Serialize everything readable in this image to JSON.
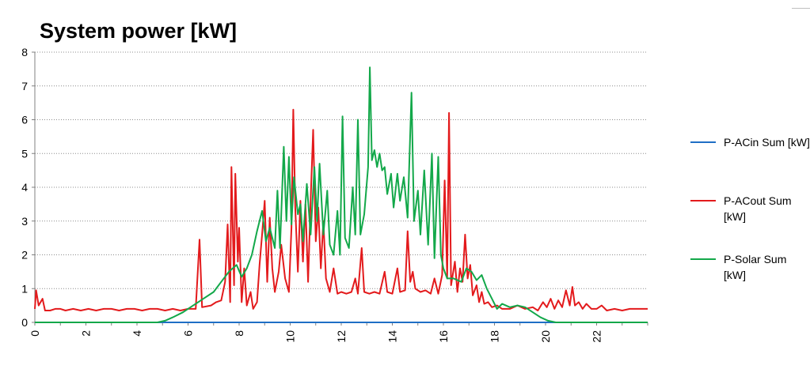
{
  "chart_data": {
    "type": "line",
    "title": "System power [kW]",
    "xlabel": "",
    "ylabel": "",
    "xlim": [
      0,
      24
    ],
    "ylim": [
      0,
      8
    ],
    "y_ticks": [
      "0",
      "1",
      "2",
      "3",
      "4",
      "5",
      "6",
      "7",
      "8"
    ],
    "x_ticks": [
      "0",
      "2",
      "4",
      "6",
      "8",
      "10",
      "12",
      "14",
      "16",
      "18",
      "20",
      "22"
    ],
    "grid": "horizontal dotted",
    "legend_position": "right",
    "series": [
      {
        "name": "P-ACin Sum [kW]",
        "color": "#1f6fc5",
        "points": [
          [
            0,
            0
          ],
          [
            24,
            0
          ]
        ]
      },
      {
        "name": "P-ACout Sum [kW]",
        "color": "#e31a1c",
        "points": [
          [
            0,
            0.4
          ],
          [
            0.05,
            0.95
          ],
          [
            0.15,
            0.5
          ],
          [
            0.3,
            0.7
          ],
          [
            0.4,
            0.35
          ],
          [
            0.6,
            0.35
          ],
          [
            0.8,
            0.4
          ],
          [
            1.0,
            0.4
          ],
          [
            1.2,
            0.35
          ],
          [
            1.5,
            0.4
          ],
          [
            1.8,
            0.35
          ],
          [
            2.1,
            0.4
          ],
          [
            2.4,
            0.35
          ],
          [
            2.7,
            0.4
          ],
          [
            3.0,
            0.4
          ],
          [
            3.3,
            0.35
          ],
          [
            3.6,
            0.4
          ],
          [
            3.9,
            0.4
          ],
          [
            4.2,
            0.35
          ],
          [
            4.5,
            0.4
          ],
          [
            4.8,
            0.4
          ],
          [
            5.1,
            0.35
          ],
          [
            5.4,
            0.4
          ],
          [
            5.7,
            0.35
          ],
          [
            6.0,
            0.4
          ],
          [
            6.3,
            0.4
          ],
          [
            6.45,
            2.45
          ],
          [
            6.55,
            0.45
          ],
          [
            6.9,
            0.5
          ],
          [
            7.1,
            0.6
          ],
          [
            7.3,
            0.65
          ],
          [
            7.45,
            1.2
          ],
          [
            7.55,
            2.9
          ],
          [
            7.65,
            0.6
          ],
          [
            7.7,
            4.6
          ],
          [
            7.8,
            1.1
          ],
          [
            7.85,
            4.4
          ],
          [
            7.95,
            1.8
          ],
          [
            8.0,
            2.8
          ],
          [
            8.1,
            0.6
          ],
          [
            8.2,
            1.6
          ],
          [
            8.3,
            0.5
          ],
          [
            8.45,
            0.9
          ],
          [
            8.55,
            0.4
          ],
          [
            8.7,
            0.6
          ],
          [
            8.8,
            1.7
          ],
          [
            8.9,
            2.6
          ],
          [
            9.0,
            3.6
          ],
          [
            9.1,
            1.2
          ],
          [
            9.2,
            3.1
          ],
          [
            9.3,
            1.6
          ],
          [
            9.4,
            0.9
          ],
          [
            9.55,
            1.5
          ],
          [
            9.65,
            2.3
          ],
          [
            9.8,
            1.3
          ],
          [
            9.95,
            0.9
          ],
          [
            10.05,
            2.8
          ],
          [
            10.12,
            6.3
          ],
          [
            10.2,
            3.4
          ],
          [
            10.3,
            1.5
          ],
          [
            10.4,
            3.6
          ],
          [
            10.5,
            1.8
          ],
          [
            10.6,
            3.5
          ],
          [
            10.7,
            1.2
          ],
          [
            10.8,
            3.6
          ],
          [
            10.9,
            5.7
          ],
          [
            11.0,
            2.4
          ],
          [
            11.1,
            3.4
          ],
          [
            11.2,
            1.6
          ],
          [
            11.3,
            3.0
          ],
          [
            11.4,
            1.3
          ],
          [
            11.55,
            0.9
          ],
          [
            11.7,
            1.6
          ],
          [
            11.85,
            0.85
          ],
          [
            12.0,
            0.9
          ],
          [
            12.2,
            0.85
          ],
          [
            12.4,
            0.9
          ],
          [
            12.55,
            1.3
          ],
          [
            12.65,
            0.85
          ],
          [
            12.8,
            2.2
          ],
          [
            12.9,
            0.9
          ],
          [
            13.1,
            0.85
          ],
          [
            13.3,
            0.9
          ],
          [
            13.5,
            0.85
          ],
          [
            13.7,
            1.5
          ],
          [
            13.8,
            0.9
          ],
          [
            14.0,
            0.85
          ],
          [
            14.2,
            1.6
          ],
          [
            14.3,
            0.9
          ],
          [
            14.5,
            0.95
          ],
          [
            14.6,
            2.7
          ],
          [
            14.7,
            1.2
          ],
          [
            14.8,
            1.5
          ],
          [
            14.9,
            1.0
          ],
          [
            15.1,
            0.9
          ],
          [
            15.3,
            0.95
          ],
          [
            15.5,
            0.85
          ],
          [
            15.65,
            1.3
          ],
          [
            15.8,
            0.85
          ],
          [
            15.95,
            1.4
          ],
          [
            16.05,
            4.2
          ],
          [
            16.15,
            1.3
          ],
          [
            16.22,
            6.2
          ],
          [
            16.3,
            1.1
          ],
          [
            16.45,
            1.8
          ],
          [
            16.55,
            0.9
          ],
          [
            16.65,
            1.6
          ],
          [
            16.75,
            1.2
          ],
          [
            16.85,
            2.6
          ],
          [
            16.95,
            1.3
          ],
          [
            17.05,
            1.7
          ],
          [
            17.15,
            0.8
          ],
          [
            17.3,
            1.1
          ],
          [
            17.4,
            0.6
          ],
          [
            17.5,
            0.9
          ],
          [
            17.6,
            0.55
          ],
          [
            17.75,
            0.6
          ],
          [
            17.9,
            0.45
          ],
          [
            18.1,
            0.5
          ],
          [
            18.3,
            0.4
          ],
          [
            18.6,
            0.4
          ],
          [
            18.9,
            0.5
          ],
          [
            19.2,
            0.4
          ],
          [
            19.5,
            0.45
          ],
          [
            19.7,
            0.35
          ],
          [
            19.9,
            0.6
          ],
          [
            20.05,
            0.45
          ],
          [
            20.2,
            0.7
          ],
          [
            20.35,
            0.4
          ],
          [
            20.5,
            0.65
          ],
          [
            20.65,
            0.45
          ],
          [
            20.8,
            0.95
          ],
          [
            20.95,
            0.5
          ],
          [
            21.05,
            1.05
          ],
          [
            21.15,
            0.5
          ],
          [
            21.3,
            0.6
          ],
          [
            21.45,
            0.4
          ],
          [
            21.6,
            0.55
          ],
          [
            21.8,
            0.4
          ],
          [
            22.0,
            0.4
          ],
          [
            22.2,
            0.5
          ],
          [
            22.4,
            0.35
          ],
          [
            22.7,
            0.4
          ],
          [
            23.0,
            0.35
          ],
          [
            23.3,
            0.4
          ],
          [
            23.6,
            0.4
          ],
          [
            24.0,
            0.4
          ]
        ]
      },
      {
        "name": "P-Solar Sum [kW]",
        "color": "#13a84a",
        "points": [
          [
            0,
            0
          ],
          [
            4.8,
            0
          ],
          [
            5.1,
            0.05
          ],
          [
            5.4,
            0.15
          ],
          [
            5.8,
            0.3
          ],
          [
            6.2,
            0.5
          ],
          [
            6.6,
            0.7
          ],
          [
            7.0,
            0.9
          ],
          [
            7.3,
            1.2
          ],
          [
            7.6,
            1.5
          ],
          [
            7.9,
            1.7
          ],
          [
            8.1,
            1.35
          ],
          [
            8.3,
            1.6
          ],
          [
            8.5,
            2.0
          ],
          [
            8.7,
            2.7
          ],
          [
            8.9,
            3.3
          ],
          [
            9.05,
            2.4
          ],
          [
            9.2,
            2.8
          ],
          [
            9.4,
            2.2
          ],
          [
            9.5,
            3.9
          ],
          [
            9.6,
            2.2
          ],
          [
            9.75,
            5.2
          ],
          [
            9.85,
            3.0
          ],
          [
            9.95,
            4.9
          ],
          [
            10.05,
            2.9
          ],
          [
            10.15,
            4.3
          ],
          [
            10.3,
            3.2
          ],
          [
            10.4,
            3.5
          ],
          [
            10.5,
            2.4
          ],
          [
            10.65,
            4.1
          ],
          [
            10.8,
            2.6
          ],
          [
            10.95,
            4.6
          ],
          [
            11.05,
            3.0
          ],
          [
            11.15,
            4.7
          ],
          [
            11.3,
            2.6
          ],
          [
            11.45,
            3.9
          ],
          [
            11.55,
            2.3
          ],
          [
            11.7,
            2.0
          ],
          [
            11.85,
            3.3
          ],
          [
            11.95,
            2.0
          ],
          [
            12.05,
            6.1
          ],
          [
            12.15,
            2.5
          ],
          [
            12.3,
            2.2
          ],
          [
            12.45,
            4.0
          ],
          [
            12.55,
            2.6
          ],
          [
            12.65,
            6.0
          ],
          [
            12.75,
            2.6
          ],
          [
            12.9,
            3.2
          ],
          [
            13.05,
            4.6
          ],
          [
            13.12,
            7.55
          ],
          [
            13.2,
            4.8
          ],
          [
            13.3,
            5.1
          ],
          [
            13.4,
            4.6
          ],
          [
            13.5,
            5.0
          ],
          [
            13.6,
            4.5
          ],
          [
            13.7,
            4.6
          ],
          [
            13.8,
            3.8
          ],
          [
            13.95,
            4.4
          ],
          [
            14.05,
            3.4
          ],
          [
            14.2,
            4.4
          ],
          [
            14.3,
            3.6
          ],
          [
            14.45,
            4.3
          ],
          [
            14.6,
            3.1
          ],
          [
            14.75,
            6.8
          ],
          [
            14.85,
            3.0
          ],
          [
            15.0,
            3.9
          ],
          [
            15.1,
            2.6
          ],
          [
            15.25,
            4.5
          ],
          [
            15.4,
            2.3
          ],
          [
            15.55,
            5.0
          ],
          [
            15.65,
            1.9
          ],
          [
            15.8,
            4.9
          ],
          [
            15.9,
            2.0
          ],
          [
            16.0,
            1.6
          ],
          [
            16.15,
            1.3
          ],
          [
            16.4,
            1.3
          ],
          [
            16.7,
            1.2
          ],
          [
            16.9,
            1.6
          ],
          [
            17.1,
            1.5
          ],
          [
            17.3,
            1.25
          ],
          [
            17.5,
            1.4
          ],
          [
            17.7,
            1.0
          ],
          [
            17.9,
            0.7
          ],
          [
            18.1,
            0.4
          ],
          [
            18.3,
            0.55
          ],
          [
            18.6,
            0.45
          ],
          [
            18.9,
            0.5
          ],
          [
            19.2,
            0.45
          ],
          [
            19.5,
            0.3
          ],
          [
            19.8,
            0.15
          ],
          [
            20.1,
            0.05
          ],
          [
            20.4,
            0
          ],
          [
            24.0,
            0
          ]
        ]
      }
    ]
  }
}
